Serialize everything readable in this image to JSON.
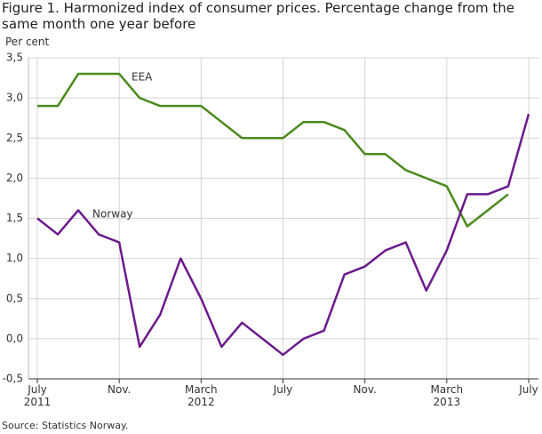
{
  "chart_data": {
    "type": "line",
    "title": "Figure 1. Harmonized index of consumer prices. Percentage change from the same month one year before",
    "y_label": "Per cent",
    "source": "Source: Statistics Norway.",
    "categories": [
      "July\n2011",
      null,
      null,
      null,
      "Nov.",
      null,
      null,
      null,
      "March\n2012",
      null,
      null,
      null,
      "July",
      null,
      null,
      null,
      "Nov.",
      null,
      null,
      null,
      "March\n2013",
      null,
      null,
      null,
      "July"
    ],
    "series": [
      {
        "name": "EEA",
        "color": "#4a8a1c",
        "values": [
          2.9,
          2.9,
          3.3,
          3.3,
          3.3,
          3.0,
          2.9,
          2.9,
          2.9,
          2.7,
          2.5,
          2.5,
          2.5,
          2.7,
          2.7,
          2.6,
          2.3,
          2.3,
          2.1,
          2.0,
          1.9,
          1.4,
          1.6,
          1.8,
          null
        ]
      },
      {
        "name": "Norway",
        "color": "#6b1a8c",
        "values": [
          1.5,
          1.3,
          1.6,
          1.3,
          1.2,
          -0.1,
          0.3,
          1.0,
          0.5,
          -0.1,
          0.2,
          0.0,
          -0.2,
          0.0,
          0.1,
          0.8,
          0.9,
          1.1,
          1.2,
          0.6,
          1.1,
          1.8,
          1.8,
          1.9,
          2.8
        ]
      }
    ],
    "ylim": [
      -0.5,
      3.5
    ],
    "yticks": [
      {
        "value": -0.5,
        "label": "-0,5"
      },
      {
        "value": 0,
        "label": "0,0"
      },
      {
        "value": 0.5,
        "label": "0,5"
      },
      {
        "value": 1,
        "label": "1,0"
      },
      {
        "value": 1.5,
        "label": "1,5"
      },
      {
        "value": 2,
        "label": "2,0"
      },
      {
        "value": 2.5,
        "label": "2,5"
      },
      {
        "value": 3,
        "label": "3,0"
      },
      {
        "value": 3.5,
        "label": "3,5"
      }
    ],
    "grid": true
  }
}
